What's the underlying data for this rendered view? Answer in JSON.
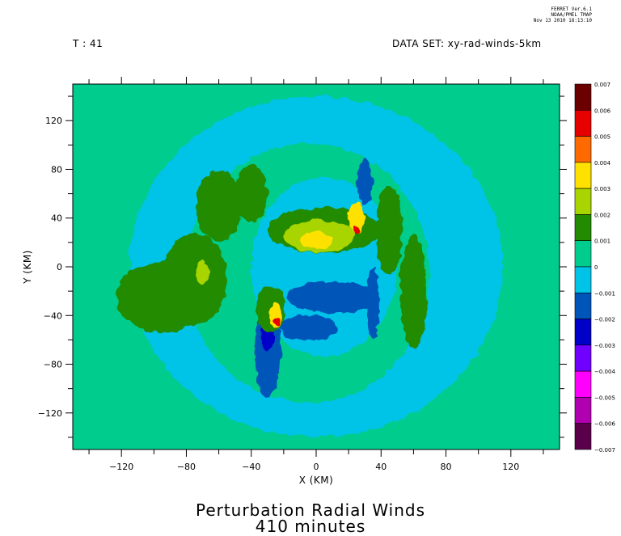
{
  "header": {
    "time_label": "T : 41",
    "dataset_label": "DATA SET: xy-rad-winds-5km",
    "stamp": [
      "FERRET Ver.6.1",
      "NOAA/PMEL TMAP",
      "Nov 13 2010 18:13:10"
    ]
  },
  "title_lines": [
    "Perturbation Radial Winds",
    "410 minutes"
  ],
  "chart_data": {
    "type": "heatmap",
    "title": "Perturbation Radial Winds",
    "subtitle": "410 minutes",
    "xlabel": "X (KM)",
    "ylabel": "Y (KM)",
    "xlim": [
      -150,
      150
    ],
    "ylim": [
      -150,
      150
    ],
    "x_ticks": [
      -120,
      -80,
      -40,
      0,
      40,
      80,
      120
    ],
    "y_ticks": [
      120,
      80,
      40,
      0,
      -40,
      -80,
      -120
    ],
    "x_tick_labels": [
      "−120",
      "−80",
      "−40",
      "0",
      "40",
      "80",
      "120"
    ],
    "y_tick_labels": [
      "120",
      "80",
      "40",
      "0",
      "−40",
      "−80",
      "−120"
    ],
    "colorbar": {
      "levels": [
        0.007,
        0.006,
        0.005,
        0.004,
        0.003,
        0.002,
        0.001,
        0,
        -0.001,
        -0.002,
        -0.003,
        -0.004,
        -0.005,
        -0.006,
        -0.007
      ],
      "labels": [
        "0.007",
        "0.006",
        "0.005",
        "0.004",
        "0.003",
        "0.002",
        "0.001",
        "0",
        "−0.001",
        "−0.002",
        "−0.003",
        "−0.004",
        "−0.005",
        "−0.006",
        "−0.007"
      ],
      "colors": [
        "#6b0000",
        "#e60000",
        "#ff6a00",
        "#ffe100",
        "#a8d400",
        "#228b00",
        "#00cc8e",
        "#00c3e8",
        "#0055b8",
        "#0000c8",
        "#7000ff",
        "#ff00ff",
        "#b000b0",
        "#5a004a"
      ]
    },
    "features": [
      {
        "name": "outer-cyan-ring",
        "level": -0.001,
        "cx": 0,
        "cy": 0,
        "rx": 115,
        "ry": 105
      },
      {
        "name": "inner-green-disc",
        "level": 0.0005,
        "cx": -5,
        "cy": -5,
        "rx": 75,
        "ry": 80
      },
      {
        "name": "core-cyan",
        "level": -0.001,
        "cx": 5,
        "cy": 0,
        "rx": 45,
        "ry": 55
      },
      {
        "name": "west-green-patch",
        "level": 0.0015,
        "cx": -95,
        "cy": -25,
        "rx": 28,
        "ry": 22
      },
      {
        "name": "west-green-patch-2",
        "level": 0.0015,
        "cx": -75,
        "cy": -10,
        "rx": 20,
        "ry": 28
      },
      {
        "name": "northwest-green-arc",
        "level": 0.0015,
        "cx": -60,
        "cy": 50,
        "rx": 14,
        "ry": 22
      },
      {
        "name": "northeast-green-band",
        "level": 0.0015,
        "cx": 5,
        "cy": 30,
        "rx": 35,
        "ry": 14
      },
      {
        "name": "north-yellowgreen-core",
        "level": 0.0025,
        "cx": 2,
        "cy": 25,
        "rx": 22,
        "ry": 10
      },
      {
        "name": "north-yellow-core",
        "level": 0.0035,
        "cx": 0,
        "cy": 22,
        "rx": 10,
        "ry": 5
      },
      {
        "name": "ne-yellow-spot",
        "level": 0.0035,
        "cx": 25,
        "cy": 40,
        "rx": 5,
        "ry": 10
      },
      {
        "name": "ne-red-spot",
        "level": 0.0055,
        "cx": 25,
        "cy": 30,
        "rx": 2,
        "ry": 3
      },
      {
        "name": "south-blue-band",
        "level": -0.0015,
        "cx": 10,
        "cy": -25,
        "rx": 28,
        "ry": 10
      },
      {
        "name": "south-blue-band-2",
        "level": -0.0015,
        "cx": -5,
        "cy": -50,
        "rx": 18,
        "ry": 8
      },
      {
        "name": "southwest-blue-stripe",
        "level": -0.0015,
        "cx": -30,
        "cy": -70,
        "rx": 8,
        "ry": 28
      },
      {
        "name": "southwest-darkblue",
        "level": -0.0025,
        "cx": -30,
        "cy": -55,
        "rx": 4,
        "ry": 10
      },
      {
        "name": "sw-green-spot",
        "level": 0.0015,
        "cx": -28,
        "cy": -35,
        "rx": 9,
        "ry": 14
      },
      {
        "name": "sw-yellow-spot",
        "level": 0.0035,
        "cx": -25,
        "cy": -40,
        "rx": 4,
        "ry": 8
      },
      {
        "name": "sw-red-spot",
        "level": 0.0055,
        "cx": -24,
        "cy": -45,
        "rx": 2,
        "ry": 3
      },
      {
        "name": "north-blue-stripe",
        "level": -0.0015,
        "cx": 30,
        "cy": 70,
        "rx": 5,
        "ry": 14
      },
      {
        "name": "east-blue-stripe",
        "level": -0.0015,
        "cx": 35,
        "cy": -30,
        "rx": 4,
        "ry": 22
      },
      {
        "name": "east-green-arc",
        "level": 0.0015,
        "cx": 60,
        "cy": -20,
        "rx": 8,
        "ry": 35
      },
      {
        "name": "east-green-arc-2",
        "level": 0.0015,
        "cx": 45,
        "cy": 30,
        "rx": 8,
        "ry": 28
      },
      {
        "name": "north-green-blob",
        "level": 0.0015,
        "cx": -40,
        "cy": 60,
        "rx": 10,
        "ry": 18
      },
      {
        "name": "west-yellowgreen-spot",
        "level": 0.0025,
        "cx": -70,
        "cy": -5,
        "rx": 4,
        "ry": 8
      }
    ]
  }
}
